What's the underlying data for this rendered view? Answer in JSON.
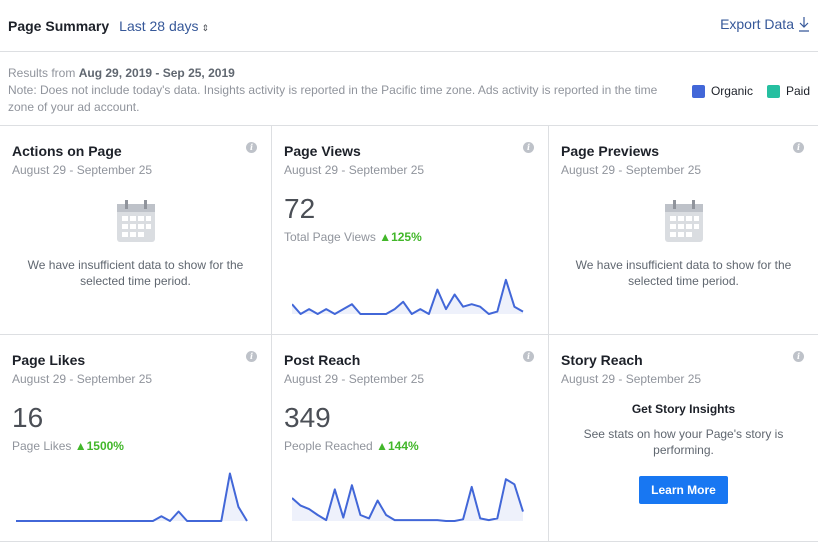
{
  "header": {
    "title": "Page Summary",
    "range": "Last 28 days",
    "export": "Export Data"
  },
  "info": {
    "results_prefix": "Results from",
    "results_range": "Aug 29, 2019 - Sep 25, 2019",
    "note": "Note: Does not include today's data. Insights activity is reported in the Pacific time zone. Ads activity is reported in the time zone of your ad account."
  },
  "legend": [
    {
      "label": "Organic",
      "color": "#4267d8"
    },
    {
      "label": "Paid",
      "color": "#26bfa0"
    }
  ],
  "cards": [
    {
      "title": "Actions on Page",
      "date": "August 29 - September 25",
      "empty": "We have insufficient data to show for the selected time period."
    },
    {
      "title": "Page Views",
      "date": "August 29 - September 25",
      "value": "72",
      "label": "Total Page Views",
      "change": "125%",
      "series": [
        4,
        0,
        2,
        0,
        2,
        0,
        2,
        4,
        0,
        0,
        0,
        0,
        2,
        5,
        0,
        2,
        0,
        10,
        2,
        8,
        3,
        4,
        3,
        0,
        1,
        14,
        3,
        1
      ]
    },
    {
      "title": "Page Previews",
      "date": "August 29 - September 25",
      "empty": "We have insufficient data to show for the selected time period."
    },
    {
      "title": "Page Likes",
      "date": "August 29 - September 25",
      "value": "16",
      "label": "Page Likes",
      "change": "1500%",
      "series": [
        0,
        0,
        0,
        0,
        0,
        0,
        0,
        0,
        0,
        0,
        0,
        0,
        0,
        0,
        0,
        0,
        0,
        1,
        0,
        2,
        0,
        0,
        0,
        0,
        0,
        10,
        3,
        0
      ]
    },
    {
      "title": "Post Reach",
      "date": "August 29 - September 25",
      "value": "349",
      "label": "People Reached",
      "change": "144%",
      "series": [
        27,
        18,
        14,
        7,
        1,
        37,
        4,
        42,
        7,
        3,
        24,
        7,
        1,
        1,
        1,
        1,
        1,
        1,
        0,
        0,
        2,
        40,
        3,
        1,
        3,
        49,
        43,
        11
      ]
    },
    {
      "title": "Story Reach",
      "date": "August 29 - September 25",
      "heading": "Get Story Insights",
      "text": "See stats on how your Page's story is performing.",
      "button": "Learn More"
    }
  ],
  "colors": {
    "line": "#4267d8",
    "fill": "#eef1fb",
    "up": "#42b72a"
  }
}
